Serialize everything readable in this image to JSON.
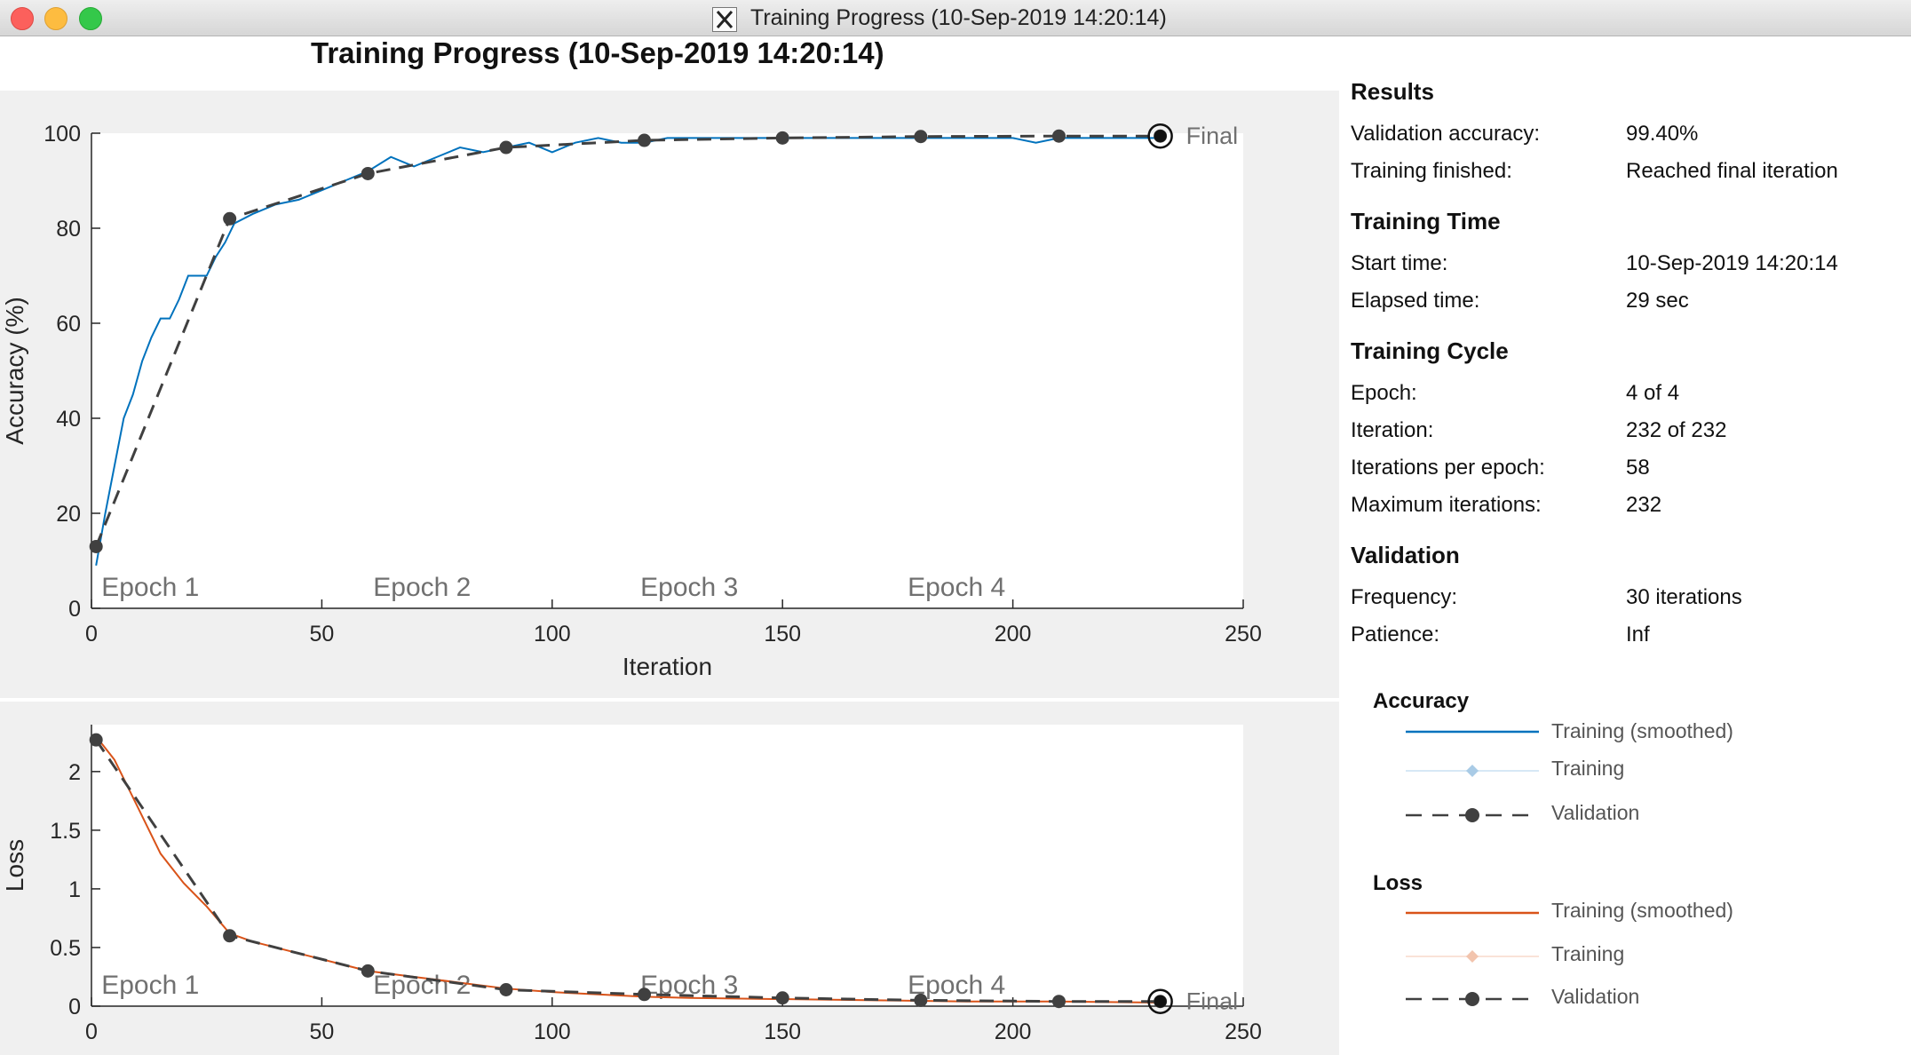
{
  "window": {
    "title": "Training Progress (10-Sep-2019 14:20:14)",
    "icon": "x11-icon"
  },
  "figure": {
    "title": "Training Progress (10-Sep-2019 14:20:14)"
  },
  "results": {
    "title": "Results",
    "rows": [
      {
        "label": "Validation accuracy:",
        "value": "99.40%"
      },
      {
        "label": "Training finished:",
        "value": "Reached final iteration"
      }
    ]
  },
  "training_time": {
    "title": "Training Time",
    "rows": [
      {
        "label": "Start time:",
        "value": "10-Sep-2019 14:20:14"
      },
      {
        "label": "Elapsed time:",
        "value": "29 sec"
      }
    ]
  },
  "training_cycle": {
    "title": "Training Cycle",
    "rows": [
      {
        "label": "Epoch:",
        "value": "4 of 4"
      },
      {
        "label": "Iteration:",
        "value": "232 of 232"
      },
      {
        "label": "Iterations per epoch:",
        "value": "58"
      },
      {
        "label": "Maximum iterations:",
        "value": "232"
      }
    ]
  },
  "validation": {
    "title": "Validation",
    "rows": [
      {
        "label": "Frequency:",
        "value": "30 iterations"
      },
      {
        "label": "Patience:",
        "value": "Inf"
      }
    ]
  },
  "legend": {
    "accuracy": {
      "title": "Accuracy",
      "items": [
        "Training (smoothed)",
        "Training",
        "Validation"
      ]
    },
    "loss": {
      "title": "Loss",
      "items": [
        "Training (smoothed)",
        "Training",
        "Validation"
      ]
    }
  },
  "colors": {
    "accuracy_smoothed": "#0072bd",
    "accuracy_training": "#a9cbe6",
    "loss_smoothed": "#d95319",
    "loss_training": "#f2c4ad",
    "validation": "#404040",
    "axes_bg": "#ffffff",
    "figure_bg": "#f0f0f0"
  },
  "chart_data": [
    {
      "type": "line",
      "title": "",
      "xlabel": "Iteration",
      "ylabel": "Accuracy (%)",
      "xlim": [
        0,
        250
      ],
      "ylim": [
        0,
        100
      ],
      "xticks": [
        0,
        50,
        100,
        150,
        200,
        250
      ],
      "yticks": [
        0,
        20,
        40,
        60,
        80,
        100
      ],
      "epoch_labels": [
        {
          "text": "Epoch 1",
          "x": 1
        },
        {
          "text": "Epoch 2",
          "x": 60
        },
        {
          "text": "Epoch 3",
          "x": 118
        },
        {
          "text": "Epoch 4",
          "x": 176
        }
      ],
      "epoch_boundaries": [
        58,
        116,
        174
      ],
      "final_label": "Final",
      "final_point": [
        232,
        99.4
      ],
      "series": [
        {
          "name": "Training (smoothed)",
          "x": [
            1,
            3,
            5,
            7,
            9,
            11,
            13,
            15,
            17,
            19,
            21,
            23,
            25,
            27,
            29,
            31,
            35,
            40,
            45,
            50,
            55,
            60,
            65,
            70,
            75,
            80,
            85,
            90,
            95,
            100,
            105,
            110,
            115,
            120,
            125,
            130,
            140,
            150,
            160,
            170,
            180,
            190,
            200,
            205,
            210,
            220,
            230,
            232
          ],
          "y": [
            9,
            20,
            30,
            40,
            45,
            52,
            57,
            61,
            61,
            65,
            70,
            70,
            70,
            74,
            77,
            81,
            83,
            85,
            86,
            88,
            90,
            92,
            95,
            93,
            95,
            97,
            96,
            97,
            98,
            96,
            98,
            99,
            98,
            98,
            99,
            99,
            99,
            99,
            99,
            99,
            99,
            99,
            99,
            98,
            99,
            99,
            99,
            99
          ]
        },
        {
          "name": "Validation",
          "x": [
            1,
            30,
            60,
            90,
            120,
            150,
            180,
            210,
            232
          ],
          "y": [
            13,
            82,
            91.5,
            97,
            98.5,
            99,
            99.3,
            99.4,
            99.4
          ]
        }
      ]
    },
    {
      "type": "line",
      "title": "",
      "xlabel": "Iteration",
      "ylabel": "Loss",
      "xlim": [
        0,
        250
      ],
      "ylim": [
        0,
        2.4
      ],
      "xticks": [
        0,
        50,
        100,
        150,
        200,
        250
      ],
      "yticks": [
        0,
        0.5,
        1,
        1.5,
        2
      ],
      "ytick_labels": [
        "0",
        "0.5",
        "1",
        "1.5",
        "2"
      ],
      "epoch_labels": [
        {
          "text": "Epoch 1",
          "x": 1
        },
        {
          "text": "Epoch 2",
          "x": 60
        },
        {
          "text": "Epoch 3",
          "x": 118
        },
        {
          "text": "Epoch 4",
          "x": 176
        }
      ],
      "epoch_boundaries": [
        58,
        116,
        174
      ],
      "final_label": "Final",
      "final_point": [
        232,
        0.04
      ],
      "series": [
        {
          "name": "Training (smoothed)",
          "x": [
            1,
            5,
            10,
            15,
            20,
            25,
            30,
            35,
            40,
            45,
            50,
            55,
            60,
            70,
            80,
            90,
            100,
            110,
            120,
            130,
            150,
            170,
            190,
            210,
            232
          ],
          "y": [
            2.3,
            2.1,
            1.7,
            1.3,
            1.05,
            0.85,
            0.62,
            0.55,
            0.5,
            0.45,
            0.4,
            0.35,
            0.3,
            0.25,
            0.2,
            0.15,
            0.12,
            0.1,
            0.08,
            0.07,
            0.06,
            0.05,
            0.04,
            0.04,
            0.03
          ]
        },
        {
          "name": "Validation",
          "x": [
            1,
            30,
            60,
            90,
            120,
            150,
            180,
            210,
            232
          ],
          "y": [
            2.27,
            0.6,
            0.3,
            0.14,
            0.1,
            0.07,
            0.05,
            0.04,
            0.04
          ]
        }
      ]
    }
  ]
}
